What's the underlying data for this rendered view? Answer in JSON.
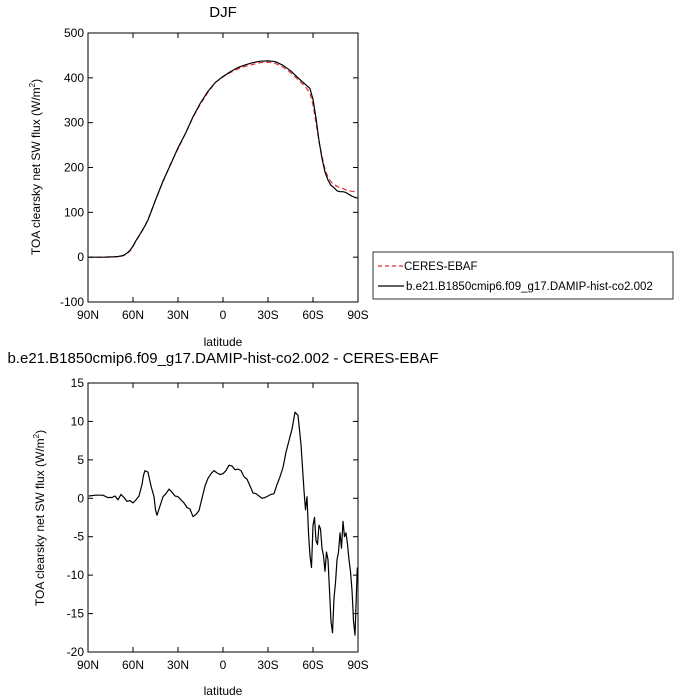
{
  "chart_data": [
    {
      "type": "line",
      "title": "DJF",
      "xlabel": "latitude",
      "ylabel": "TOA clearsky net SW flux (W/m²)",
      "xlim": [
        90,
        -90
      ],
      "ylim": [
        -100,
        500
      ],
      "xticks": [
        {
          "value": 90,
          "label": "90N"
        },
        {
          "value": 60,
          "label": "60N"
        },
        {
          "value": 30,
          "label": "30N"
        },
        {
          "value": 0,
          "label": "0"
        },
        {
          "value": -30,
          "label": "30S"
        },
        {
          "value": -60,
          "label": "60S"
        },
        {
          "value": -90,
          "label": "90S"
        }
      ],
      "yticks": [
        {
          "value": -100,
          "label": "-100"
        },
        {
          "value": 0,
          "label": "0"
        },
        {
          "value": 100,
          "label": "100"
        },
        {
          "value": 200,
          "label": "200"
        },
        {
          "value": 300,
          "label": "300"
        },
        {
          "value": 400,
          "label": "400"
        },
        {
          "value": 500,
          "label": "500"
        }
      ],
      "grid": false,
      "legend_position": "right",
      "series": [
        {
          "name": "CERES-EBAF",
          "color": "#e03030",
          "dash": true,
          "x": [
            89.5,
            85,
            80,
            75,
            72,
            70,
            68,
            66,
            64,
            62,
            60,
            58,
            55,
            52,
            50,
            45,
            40,
            35,
            30,
            25,
            20,
            15,
            10,
            5,
            0,
            -5,
            -10,
            -15,
            -20,
            -25,
            -30,
            -35,
            -40,
            -45,
            -50,
            -55,
            -58,
            -60,
            -62,
            -64,
            -66,
            -68,
            -70,
            -72,
            -74,
            -76,
            -78,
            -80,
            -82,
            -84,
            -86,
            -88,
            -89.5
          ],
          "y": [
            0,
            0,
            0,
            0,
            0.5,
            1,
            2,
            4,
            8,
            14,
            24,
            36,
            52,
            70,
            84,
            128,
            168,
            208,
            242,
            276,
            312,
            342,
            368,
            390,
            402,
            412,
            420,
            426,
            430,
            434,
            435,
            432,
            424,
            412,
            396,
            380,
            365,
            340,
            300,
            258,
            225,
            196,
            178,
            168,
            162,
            158,
            155,
            153,
            150,
            148,
            147,
            146,
            145
          ]
        },
        {
          "name": "b.e21.B1850cmip6.f09_g17.DAMIP-hist-co2.002",
          "color": "#000000",
          "dash": false,
          "x": [
            89.5,
            85,
            80,
            75,
            72,
            70,
            68,
            66,
            64,
            62,
            60,
            58,
            55,
            52,
            50,
            45,
            40,
            35,
            30,
            25,
            20,
            15,
            10,
            5,
            0,
            -5,
            -10,
            -15,
            -20,
            -25,
            -30,
            -35,
            -40,
            -45,
            -50,
            -55,
            -58,
            -60,
            -62,
            -64,
            -66,
            -68,
            -70,
            -72,
            -74,
            -76,
            -78,
            -80,
            -82,
            -84,
            -86,
            -88,
            -89.5
          ],
          "y": [
            0,
            0,
            0,
            0.5,
            1,
            1.5,
            2.5,
            4.5,
            9,
            15,
            25,
            37,
            53,
            70,
            83,
            127,
            170,
            206,
            244,
            276,
            313,
            344,
            370,
            390,
            403,
            414,
            423,
            429,
            434,
            437,
            438,
            436,
            428,
            416,
            400,
            385,
            376,
            352,
            310,
            260,
            220,
            190,
            172,
            160,
            155,
            148,
            146,
            146,
            144,
            140,
            136,
            133,
            132
          ]
        }
      ]
    },
    {
      "type": "line",
      "title": "b.e21.B1850cmip6.f09_g17.DAMIP-hist-co2.002 - CERES-EBAF",
      "xlabel": "latitude",
      "ylabel": "TOA clearsky net SW flux (W/m²)",
      "xlim": [
        90,
        -90
      ],
      "ylim": [
        -20,
        15
      ],
      "xticks": [
        {
          "value": 90,
          "label": "90N"
        },
        {
          "value": 60,
          "label": "60N"
        },
        {
          "value": 30,
          "label": "30N"
        },
        {
          "value": 0,
          "label": "0"
        },
        {
          "value": -30,
          "label": "30S"
        },
        {
          "value": -60,
          "label": "60S"
        },
        {
          "value": -90,
          "label": "90S"
        }
      ],
      "yticks": [
        {
          "value": -20,
          "label": "-20"
        },
        {
          "value": -15,
          "label": "-15"
        },
        {
          "value": -10,
          "label": "-10"
        },
        {
          "value": -5,
          "label": "-5"
        },
        {
          "value": 0,
          "label": "0"
        },
        {
          "value": 5,
          "label": "5"
        },
        {
          "value": 10,
          "label": "10"
        },
        {
          "value": 15,
          "label": "15"
        }
      ],
      "grid": false,
      "series": [
        {
          "color": "#000000",
          "dash": false,
          "x": [
            89.5,
            85,
            80,
            77,
            74,
            72,
            70,
            68,
            66,
            64,
            62,
            60,
            58,
            56,
            54,
            53,
            52,
            50,
            48,
            46,
            45,
            44,
            42,
            40,
            38,
            36,
            34,
            32,
            30,
            28,
            26,
            24,
            22,
            20,
            18,
            16,
            15,
            14,
            13,
            12,
            10,
            8,
            6,
            4,
            2,
            0,
            -2,
            -4,
            -6,
            -8,
            -10,
            -12,
            -14,
            -16,
            -18,
            -20,
            -22,
            -24,
            -26,
            -28,
            -30,
            -32,
            -34,
            -36,
            -38,
            -40,
            -42,
            -44,
            -46,
            -48,
            -50,
            -52,
            -54,
            -55,
            -56,
            -57,
            -58,
            -59,
            -60,
            -61,
            -62,
            -63,
            -64,
            -65,
            -66,
            -67,
            -68,
            -69,
            -70,
            -71,
            -72,
            -73,
            -74,
            -75,
            -76,
            -77,
            -78,
            -79,
            -80,
            -81,
            -82,
            -83,
            -84,
            -85,
            -86,
            -86.5,
            -87,
            -88,
            -89,
            -89.5
          ],
          "y": [
            0.3,
            0.4,
            0.4,
            0.1,
            0.1,
            0.3,
            -0.2,
            0.5,
            0.1,
            -0.4,
            -0.3,
            -0.6,
            -0.2,
            0.3,
            1.8,
            3.0,
            3.6,
            3.4,
            1.6,
            0.2,
            -1.5,
            -2.2,
            -1.0,
            0.2,
            0.6,
            1.2,
            0.8,
            0.3,
            0.2,
            -0.2,
            -0.6,
            -1.2,
            -1.4,
            -2.4,
            -2.1,
            -1.6,
            -0.8,
            0.0,
            0.8,
            1.6,
            2.6,
            3.2,
            3.6,
            3.3,
            3.1,
            3.2,
            3.6,
            4.3,
            4.2,
            3.7,
            3.8,
            3.6,
            2.8,
            2.5,
            1.6,
            0.7,
            0.6,
            0.3,
            0.0,
            0.1,
            0.3,
            0.5,
            0.6,
            1.8,
            2.8,
            4.0,
            6.0,
            7.5,
            9.0,
            11.2,
            10.8,
            7.0,
            1.0,
            -1.5,
            0.2,
            -4.5,
            -7.5,
            -9.0,
            -3.5,
            -2.5,
            -5.5,
            -6.0,
            -3.5,
            -4.0,
            -6.5,
            -7.5,
            -9.5,
            -7.0,
            -8.0,
            -12.0,
            -16.0,
            -17.5,
            -13.0,
            -11.0,
            -8.0,
            -7.0,
            -4.5,
            -6.5,
            -3.0,
            -5.0,
            -4.5,
            -6.0,
            -8.0,
            -9.5,
            -12.0,
            -14.0,
            -16.0,
            -17.8,
            -12.0,
            -9.0
          ]
        }
      ]
    }
  ]
}
